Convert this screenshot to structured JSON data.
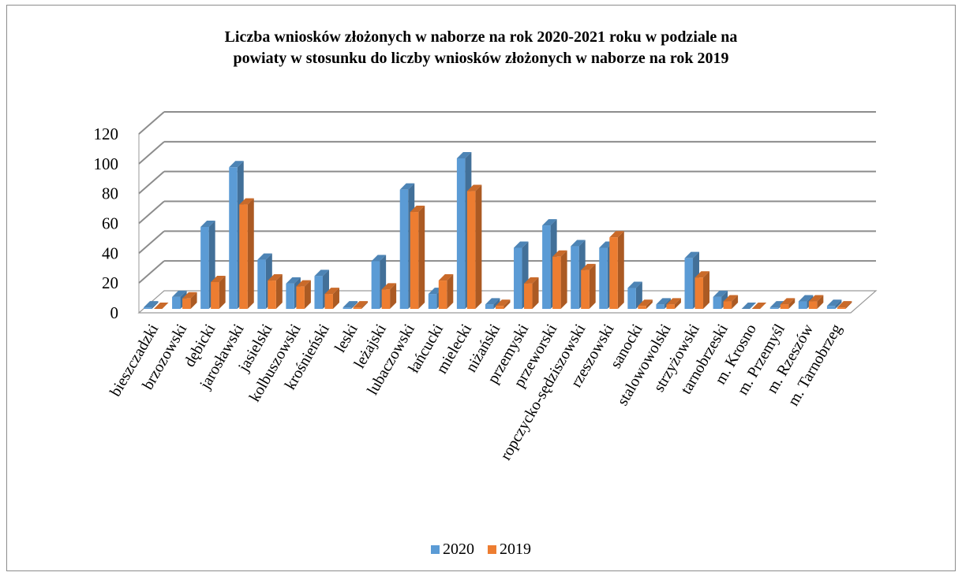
{
  "chart_data": {
    "type": "bar",
    "title": "Liczba wniosków złożonych w naborze na rok 2020-2021 roku w podziale na\npowiaty w stosunku do liczby wniosków złożonych w naborze na rok 2019",
    "categories": [
      "bieszczadzki",
      "brzozowski",
      "dębicki",
      "jarosławski",
      "jasielski",
      "kolbuszowski",
      "krośnieński",
      "leski",
      "leżajski",
      "lubaczowski",
      "łańcucki",
      "mielecki",
      "niżański",
      "przemyski",
      "przeworski",
      "ropczycko-sędziszowski",
      "rzeszowski",
      "sanocki",
      "stalowowolski",
      "strzyżowski",
      "tarnobrzeski",
      "m. Krosno",
      "m. Przemyśl",
      "m. Rzeszów",
      "m. Tarnobrzeg"
    ],
    "series": [
      {
        "name": "2020",
        "color": "#5b9bd5",
        "values": [
          1,
          8,
          55,
          95,
          33,
          17,
          22,
          1,
          32,
          80,
          10,
          101,
          3,
          41,
          56,
          42,
          41,
          14,
          3,
          34,
          8,
          0,
          1,
          5,
          2
        ]
      },
      {
        "name": "2019",
        "color": "#ed7d31",
        "values": [
          0,
          7,
          18,
          70,
          19,
          15,
          10,
          1,
          13,
          65,
          19,
          79,
          2,
          17,
          35,
          26,
          48,
          2,
          3,
          21,
          5,
          0,
          3,
          5,
          1
        ]
      }
    ],
    "ylim": [
      0,
      120
    ],
    "yticks": [
      0,
      20,
      40,
      60,
      80,
      100,
      120
    ],
    "grid": true,
    "legend_position": "bottom",
    "projection": "3d-clustered"
  }
}
